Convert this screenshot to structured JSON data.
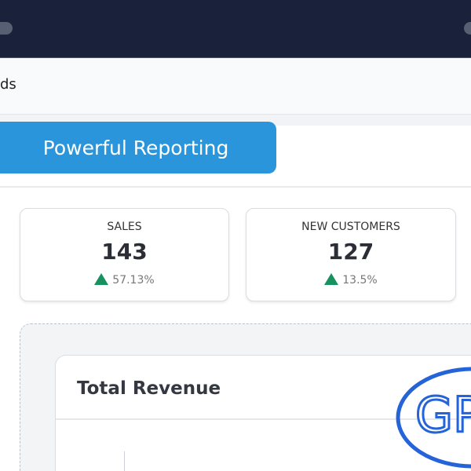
{
  "navbar": {
    "breadcrumb_fragment": "ds"
  },
  "hero": {
    "button_label": "Powerful Reporting",
    "color": "#2b95dc"
  },
  "stats": [
    {
      "label": "SALES",
      "value": "143",
      "change": "57.13%",
      "trend": "up"
    },
    {
      "label": "NEW CUSTOMERS",
      "value": "127",
      "change": "13.5%",
      "trend": "up"
    }
  ],
  "revenue": {
    "title": "Total Revenue"
  },
  "watermark": {
    "text": "GP",
    "color": "#2563d9"
  },
  "colors": {
    "topbar": "#19223a",
    "positive": "#17915f"
  }
}
